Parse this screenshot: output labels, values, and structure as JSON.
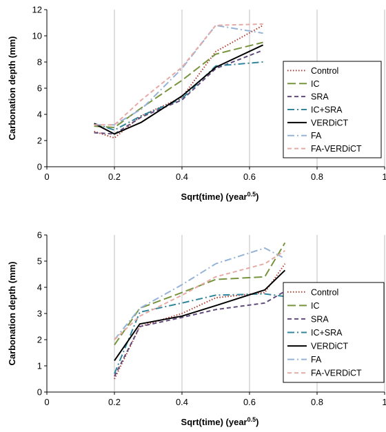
{
  "chart_data": [
    {
      "type": "line",
      "title": "",
      "xlabel": "Sqrt(time) (year",
      "xlabel_sup": "0.5",
      "xlabel_end": ")",
      "ylabel": "Carbonation depth (mm)",
      "xlim": [
        0,
        1
      ],
      "ylim": [
        0,
        12
      ],
      "xticks": [
        0,
        0.2,
        0.4,
        0.6,
        0.8,
        1
      ],
      "xtick_labels": [
        "0",
        "0.2",
        "0.4",
        "0.6",
        "0.8",
        "1"
      ],
      "yticks": [
        0,
        2,
        4,
        6,
        8,
        10,
        12
      ],
      "ytick_labels": [
        "0",
        "2",
        "4",
        "6",
        "8",
        "10",
        "12"
      ],
      "grid": "vertical",
      "legend_position": "right",
      "series": [
        {
          "name": "Control",
          "color": "#b03a2e",
          "dash": "dotted",
          "x": [
            0.14,
            0.2,
            0.28,
            0.4,
            0.5,
            0.64
          ],
          "y": [
            2.7,
            2.2,
            3.9,
            5.3,
            8.8,
            10.8
          ]
        },
        {
          "name": "IC",
          "color": "#77933c",
          "dash": "longdash",
          "x": [
            0.14,
            0.2,
            0.28,
            0.4,
            0.5,
            0.64
          ],
          "y": [
            3.1,
            3.0,
            4.5,
            6.6,
            8.6,
            9.5
          ]
        },
        {
          "name": "SRA",
          "color": "#604a7b",
          "dash": "dash",
          "x": [
            0.14,
            0.2,
            0.28,
            0.4,
            0.5,
            0.64
          ],
          "y": [
            2.6,
            2.5,
            3.8,
            5.1,
            7.5,
            8.9
          ]
        },
        {
          "name": "IC+SRA",
          "color": "#31859c",
          "dash": "dashdot",
          "x": [
            0.14,
            0.2,
            0.28,
            0.4,
            0.5,
            0.64
          ],
          "y": [
            3.3,
            2.8,
            3.9,
            5.2,
            7.7,
            8.0
          ]
        },
        {
          "name": "VERDiCT",
          "color": "#000000",
          "dash": "solid",
          "x": [
            0.14,
            0.2,
            0.28,
            0.4,
            0.5,
            0.64
          ],
          "y": [
            3.3,
            2.5,
            3.4,
            5.4,
            7.6,
            9.3
          ]
        },
        {
          "name": "FA",
          "color": "#95b3d7",
          "dash": "dashdot",
          "x": [
            0.14,
            0.2,
            0.28,
            0.4,
            0.5,
            0.64
          ],
          "y": [
            3.2,
            3.2,
            4.4,
            7.5,
            10.8,
            10.2
          ]
        },
        {
          "name": "FA-VERDiCT",
          "color": "#e6a9a4",
          "dash": "dash",
          "x": [
            0.14,
            0.2,
            0.28,
            0.4,
            0.5,
            0.64
          ],
          "y": [
            3.2,
            3.2,
            5.1,
            7.6,
            10.8,
            10.9
          ]
        }
      ]
    },
    {
      "type": "line",
      "title": "",
      "xlabel": "Sqrt(time) (year",
      "xlabel_sup": "0.5",
      "xlabel_end": ")",
      "ylabel": "Carbonation depth (mm)",
      "xlim": [
        0,
        1
      ],
      "ylim": [
        0,
        6
      ],
      "xticks": [
        0,
        0.2,
        0.4,
        0.6,
        0.8,
        1
      ],
      "xtick_labels": [
        "0",
        "0.2",
        "0.4",
        "0.6",
        "0.8",
        "1"
      ],
      "yticks": [
        0,
        1,
        2,
        3,
        4,
        5,
        6
      ],
      "ytick_labels": [
        "0",
        "1",
        "2",
        "3",
        "4",
        "5",
        "6"
      ],
      "grid": "vertical",
      "legend_position": "right",
      "series": [
        {
          "name": "Control",
          "color": "#b03a2e",
          "dash": "dotted",
          "x": [
            0.2,
            0.275,
            0.4,
            0.5,
            0.645,
            0.705
          ],
          "y": [
            0.5,
            2.5,
            3.0,
            3.6,
            3.8,
            4.9
          ]
        },
        {
          "name": "IC",
          "color": "#77933c",
          "dash": "longdash",
          "x": [
            0.2,
            0.275,
            0.4,
            0.5,
            0.645,
            0.705
          ],
          "y": [
            1.8,
            3.2,
            3.8,
            4.3,
            4.4,
            5.7
          ]
        },
        {
          "name": "SRA",
          "color": "#604a7b",
          "dash": "dash",
          "x": [
            0.2,
            0.275,
            0.4,
            0.5,
            0.645,
            0.705
          ],
          "y": [
            0.6,
            2.5,
            2.85,
            3.15,
            3.4,
            3.85
          ]
        },
        {
          "name": "IC+SRA",
          "color": "#31859c",
          "dash": "dashdot",
          "x": [
            0.2,
            0.275,
            0.4,
            0.5,
            0.645,
            0.705
          ],
          "y": [
            0.7,
            3.05,
            3.4,
            3.7,
            3.75,
            3.65
          ]
        },
        {
          "name": "VERDiCT",
          "color": "#000000",
          "dash": "solid",
          "x": [
            0.2,
            0.275,
            0.4,
            0.5,
            0.645,
            0.705
          ],
          "y": [
            1.2,
            2.6,
            2.9,
            3.3,
            3.9,
            4.65
          ]
        },
        {
          "name": "FA",
          "color": "#95b3d7",
          "dash": "dashdot",
          "x": [
            0.2,
            0.275,
            0.4,
            0.5,
            0.645,
            0.705
          ],
          "y": [
            2.0,
            3.2,
            4.1,
            4.9,
            5.5,
            5.1
          ]
        },
        {
          "name": "FA-VERDiCT",
          "color": "#e6a9a4",
          "dash": "dash",
          "x": [
            0.2,
            0.275,
            0.4,
            0.5,
            0.645,
            0.705
          ],
          "y": [
            2.0,
            2.9,
            3.7,
            4.4,
            4.9,
            5.4
          ]
        }
      ]
    }
  ]
}
